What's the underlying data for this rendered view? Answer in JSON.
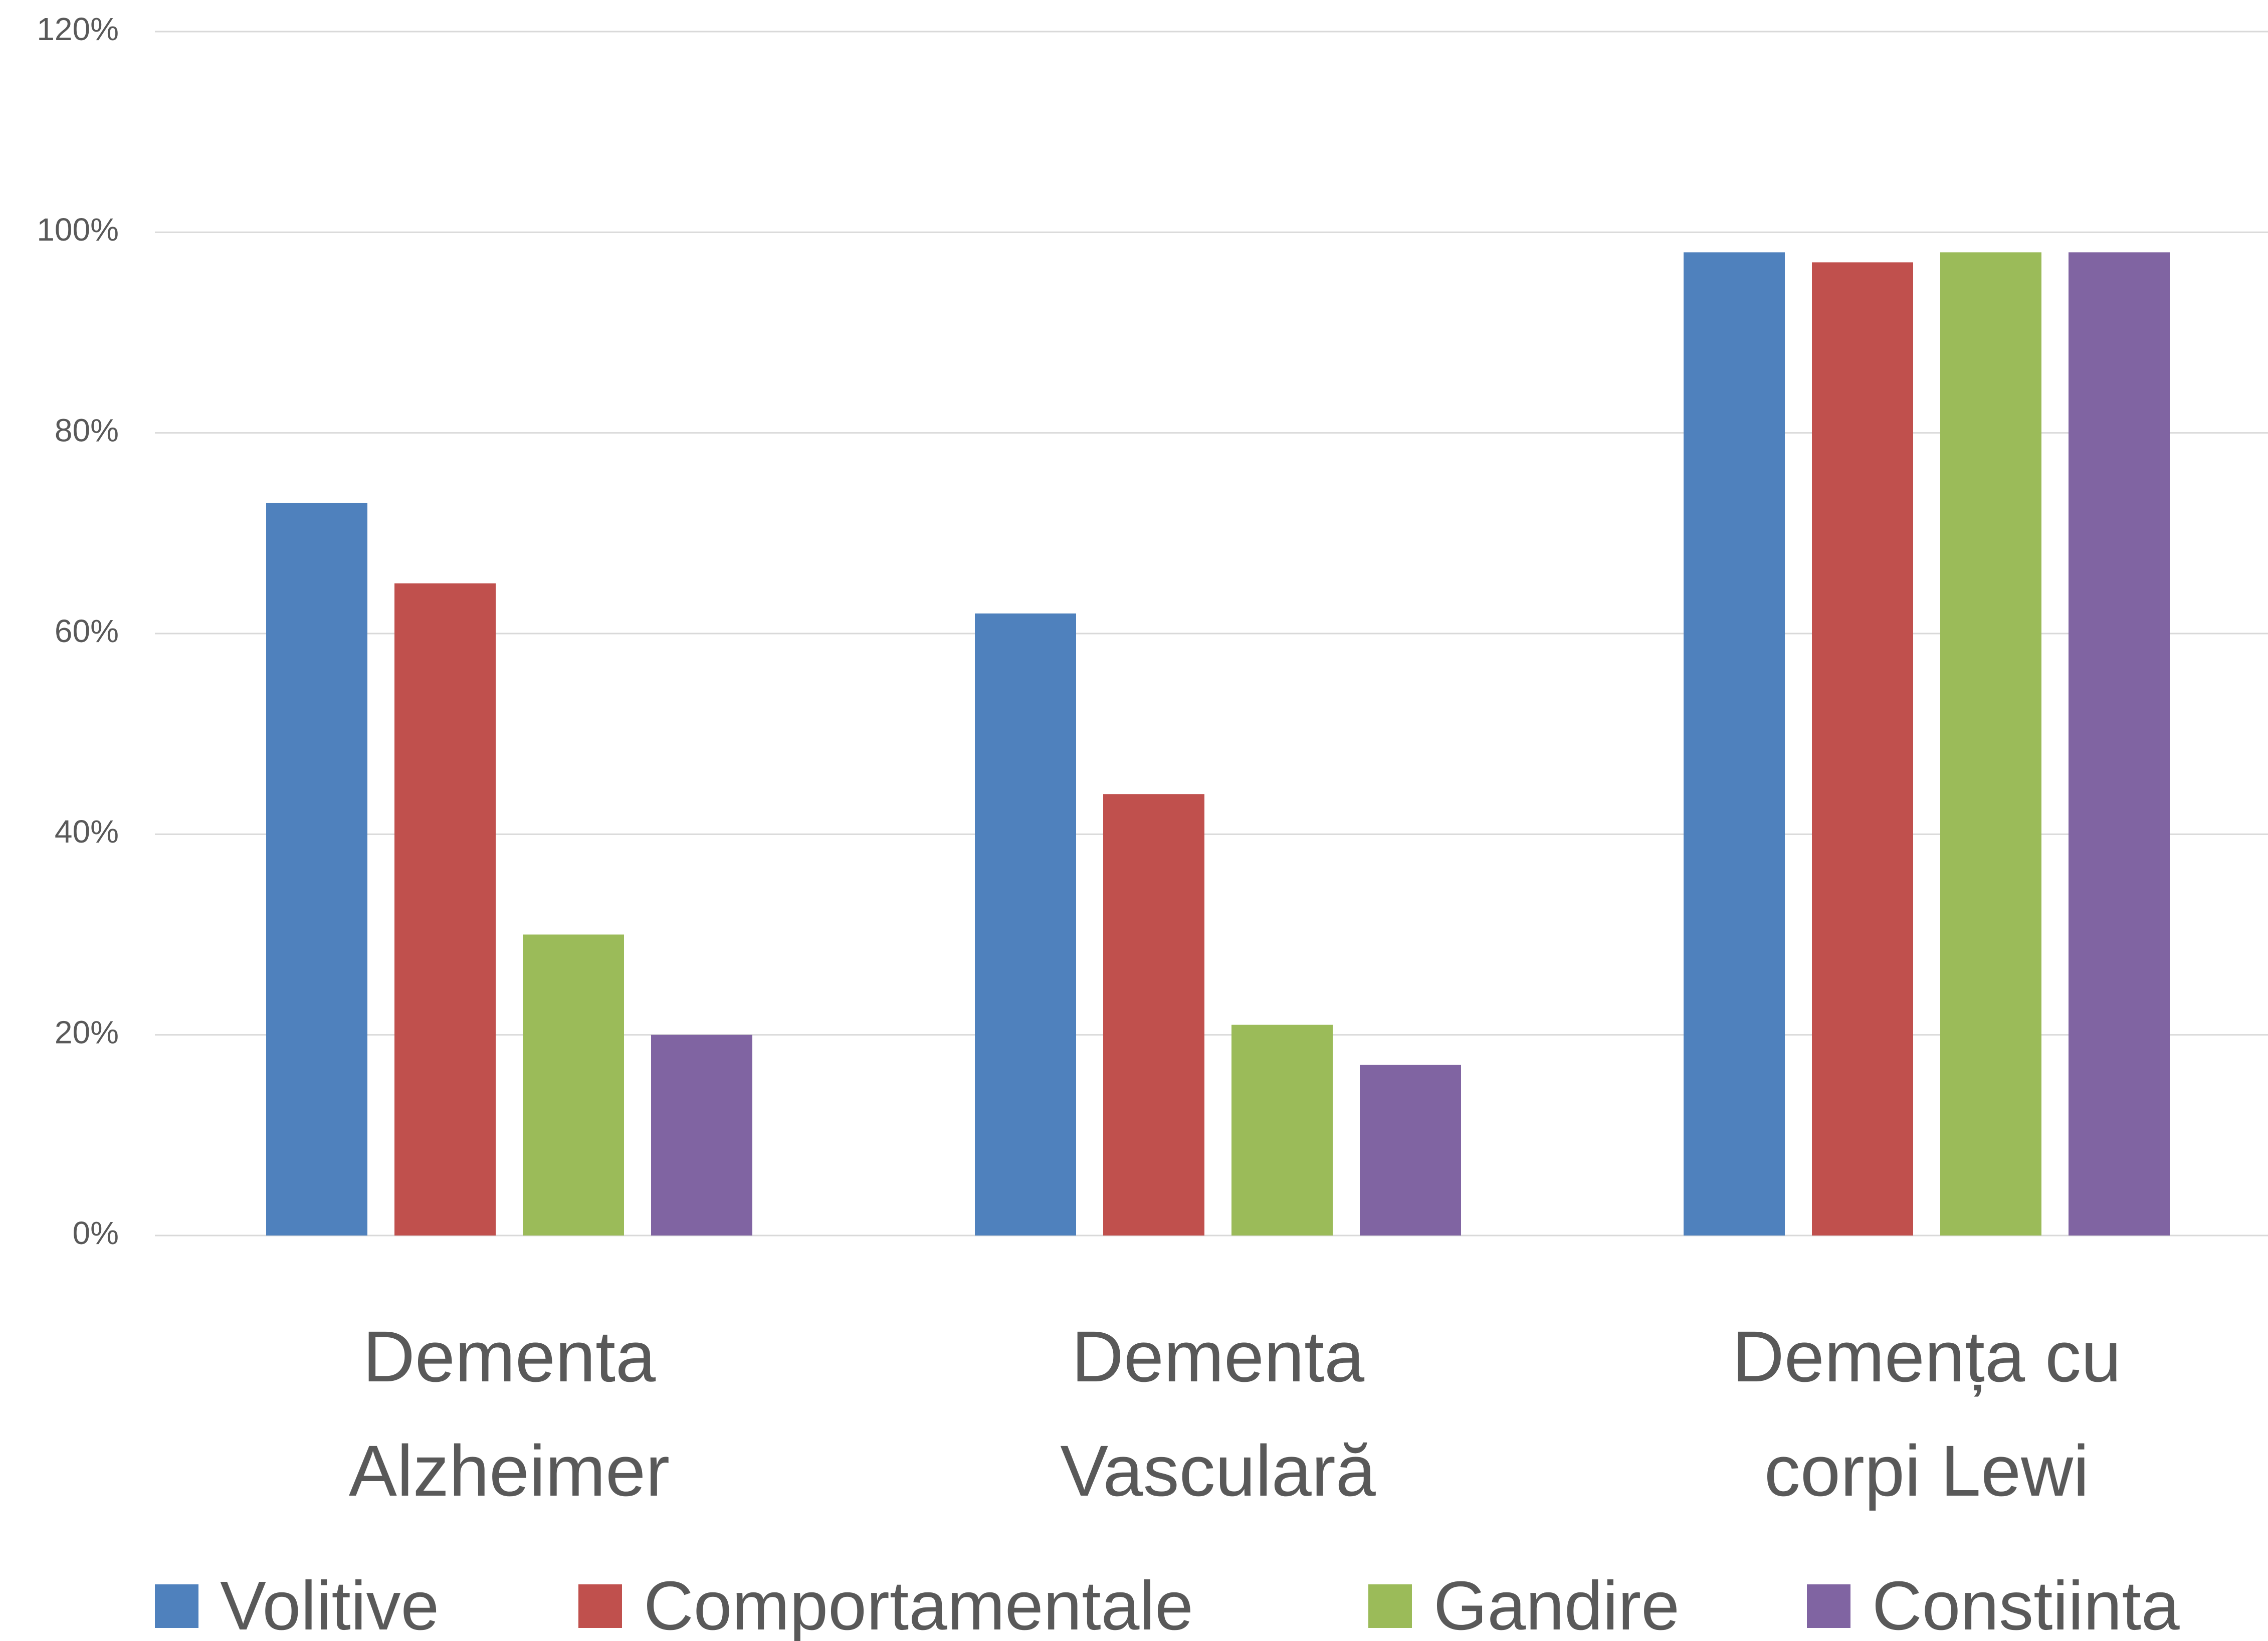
{
  "chart_data": {
    "type": "bar",
    "categories": [
      "Dementa Alzheimer",
      "Dementa Vasculară",
      "Demența cu corpi Lewi"
    ],
    "series": [
      {
        "name": "Volitive",
        "color": "#4f81bd",
        "values": [
          73,
          62,
          98
        ]
      },
      {
        "name": "Comportamentale",
        "color": "#c0504d",
        "values": [
          65,
          44,
          97
        ]
      },
      {
        "name": "Gandire",
        "color": "#9bbb59",
        "values": [
          30,
          21,
          98
        ]
      },
      {
        "name": "Constiinta",
        "color": "#8064a2",
        "values": [
          20,
          17,
          98
        ]
      }
    ],
    "ylim": [
      0,
      120
    ],
    "yticks": [
      {
        "value": 0,
        "label": "0%"
      },
      {
        "value": 20,
        "label": "20%"
      },
      {
        "value": 40,
        "label": "40%"
      },
      {
        "value": 60,
        "label": "60%"
      },
      {
        "value": 80,
        "label": "80%"
      },
      {
        "value": 100,
        "label": "100%"
      },
      {
        "value": 120,
        "label": "120%"
      }
    ],
    "grid": true,
    "legend": "bottom"
  }
}
